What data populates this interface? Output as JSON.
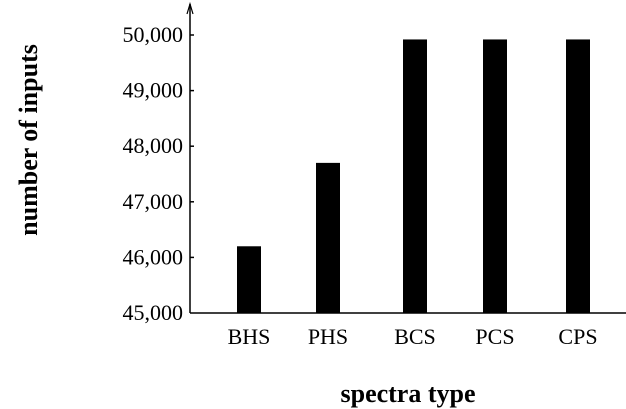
{
  "chart_data": {
    "type": "bar",
    "categories": [
      "BHS",
      "PHS",
      "BCS",
      "PCS",
      "CPS"
    ],
    "values": [
      46200,
      47700,
      49920,
      49920,
      49920
    ],
    "xlabel": "spectra type",
    "ylabel": "number of inputs",
    "ylim": [
      45000,
      50000
    ],
    "yticks": [
      45000,
      46000,
      47000,
      48000,
      49000,
      50000
    ],
    "ytick_labels": [
      "45,000",
      "46,000",
      "47,000",
      "48,000",
      "49,000",
      "50,000"
    ],
    "grid": false,
    "legend": "none",
    "colors": {
      "bar": "#000000",
      "axis": "#000000"
    }
  }
}
